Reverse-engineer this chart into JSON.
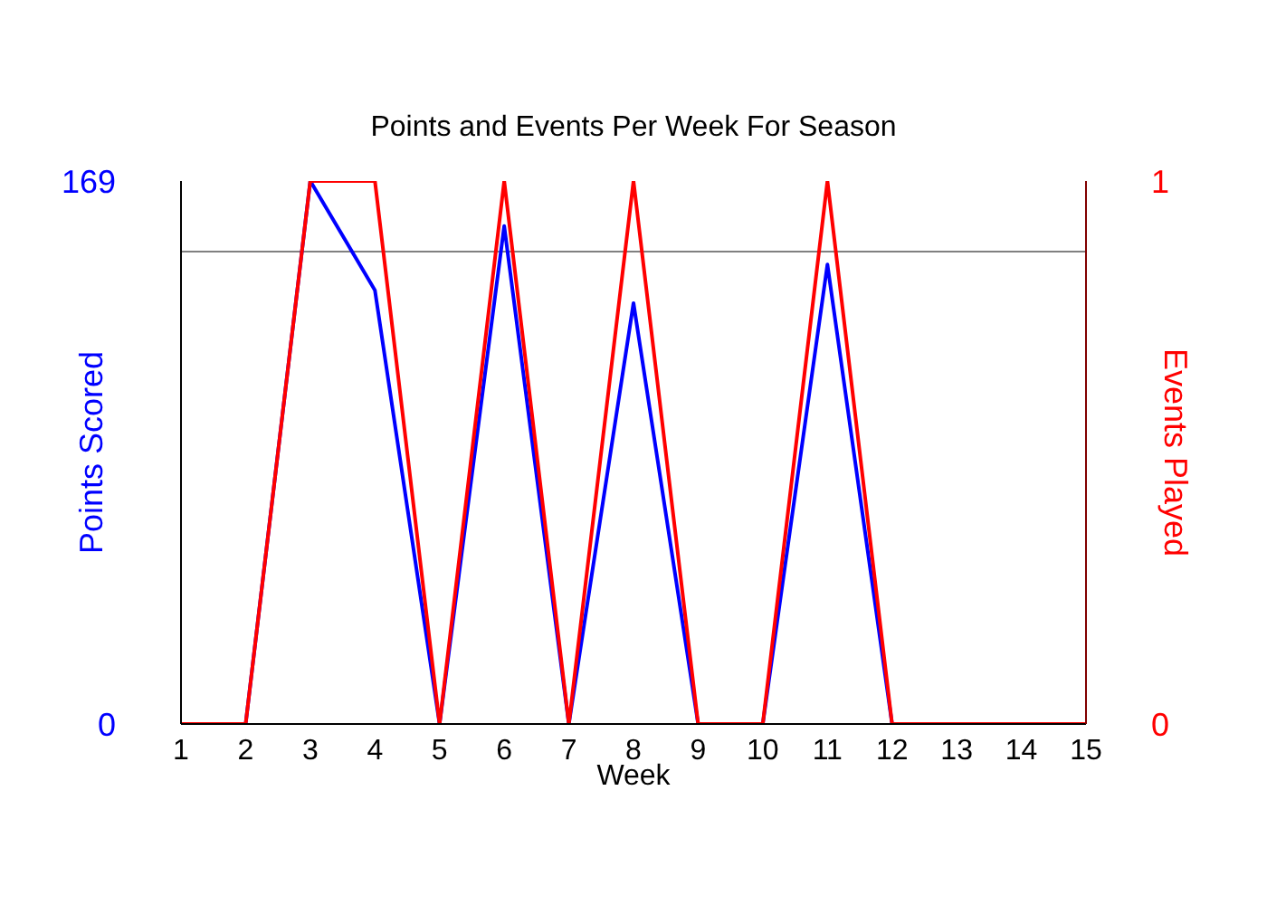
{
  "chart_data": {
    "type": "line",
    "title": "Points and Events Per Week For Season",
    "xlabel": "Week",
    "ylabel": "Points Scored",
    "y2label": "Events Played",
    "x": [
      1,
      2,
      3,
      4,
      5,
      6,
      7,
      8,
      9,
      10,
      11,
      12,
      13,
      14,
      15
    ],
    "series": [
      {
        "color": "#0000ff",
        "values": [
          0,
          0,
          169,
          135,
          0,
          155,
          0,
          131,
          0,
          0,
          143,
          0,
          0,
          null,
          null
        ]
      },
      {
        "color": "#ff0000",
        "axis": "y2",
        "values": [
          0,
          0,
          1,
          1,
          0,
          1,
          0,
          1,
          0,
          0,
          1,
          0,
          0,
          0,
          0
        ]
      }
    ],
    "xlim": [
      1,
      15
    ],
    "xticks": [
      1,
      2,
      3,
      4,
      5,
      6,
      7,
      8,
      9,
      10,
      11,
      12,
      13,
      14,
      15
    ],
    "ylim": [
      0,
      169
    ],
    "yticks": [
      0,
      169
    ],
    "y2lim": [
      0,
      1
    ],
    "y2ticks": [
      0,
      1
    ],
    "ref_lines": [
      {
        "axis": "y",
        "value": 147,
        "color": "#808080"
      }
    ],
    "grid": false,
    "marker": "none",
    "line_style": "solid"
  }
}
